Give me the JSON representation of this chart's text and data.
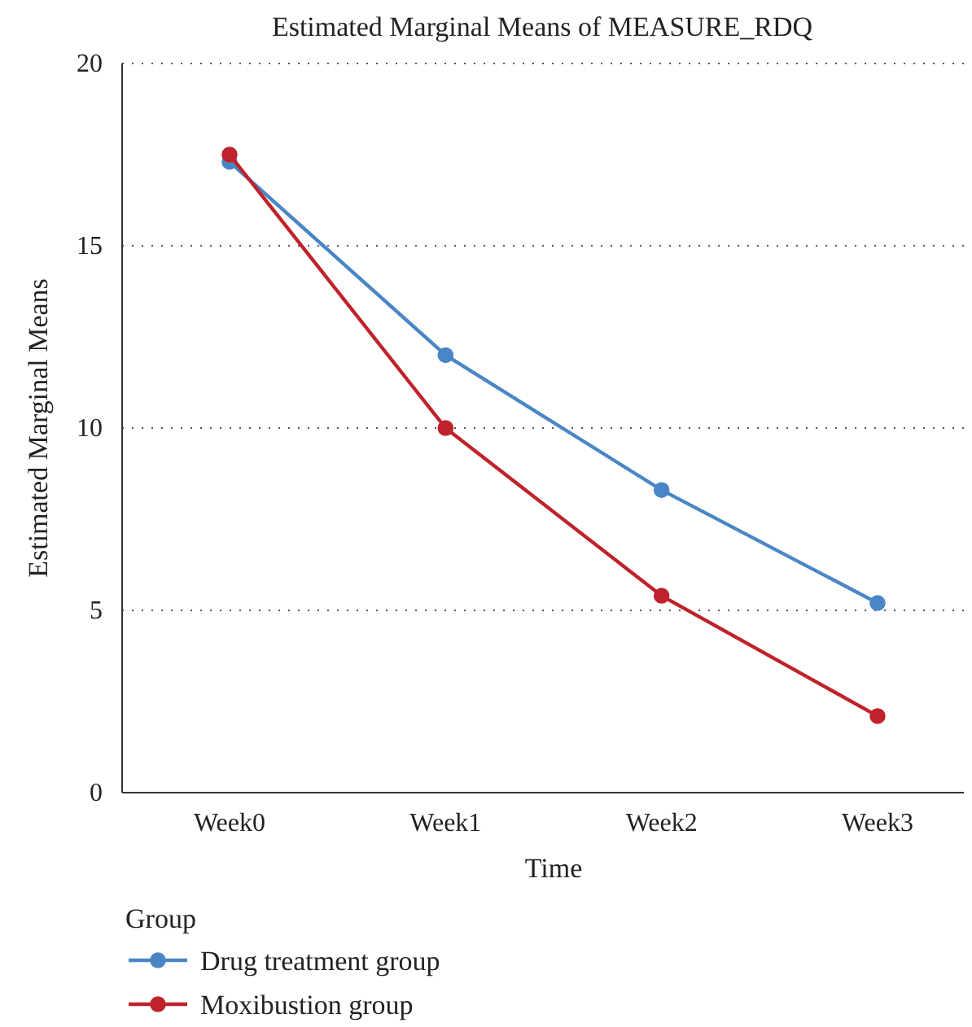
{
  "chart_data": {
    "type": "line",
    "title": "Estimated Marginal Means of MEASURE_RDQ",
    "xlabel": "Time",
    "ylabel": "Estimated Marginal Means",
    "legend_title": "Group",
    "categories": [
      "Week0",
      "Week1",
      "Week2",
      "Week3"
    ],
    "series": [
      {
        "name": "Drug treatment group",
        "color": "#4a86c5",
        "values": [
          17.3,
          12.0,
          8.3,
          5.2
        ]
      },
      {
        "name": "Moxibustion group",
        "color": "#c0222b",
        "values": [
          17.5,
          10.0,
          5.4,
          2.1
        ]
      }
    ],
    "ylim": [
      0,
      20
    ],
    "yticks": [
      0,
      5,
      10,
      15,
      20
    ],
    "grid": "y",
    "legend": "bottom",
    "marker": "circle",
    "line_style": "solid"
  }
}
